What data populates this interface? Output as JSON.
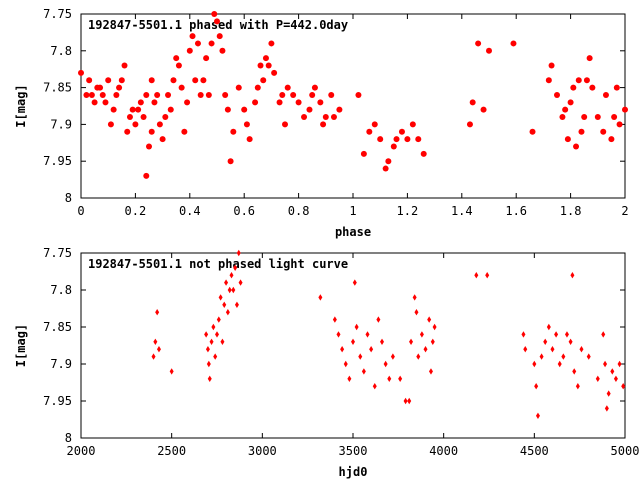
{
  "chart_data": [
    {
      "type": "scatter",
      "title": "192847-5501.1 phased with P=442.0day",
      "xlabel": "phase",
      "ylabel": "I[mag]",
      "xlim": [
        0,
        2
      ],
      "ylim": [
        7.75,
        8
      ],
      "y_inverted": true,
      "grid": false,
      "legend": "none",
      "color": "#ff0000",
      "marker": "filled-circle",
      "xticks": [
        "0",
        "0.2",
        "0.4",
        "0.6",
        "0.8",
        "1",
        "1.2",
        "1.4",
        "1.6",
        "1.8",
        "2"
      ],
      "yticks": [
        "7.75",
        "7.8",
        "7.85",
        "7.9",
        "7.95",
        "8"
      ],
      "series": [
        {
          "points": [
            [
              0.0,
              7.83
            ],
            [
              0.02,
              7.86
            ],
            [
              0.03,
              7.84
            ],
            [
              0.04,
              7.86
            ],
            [
              0.05,
              7.87
            ],
            [
              0.06,
              7.85
            ],
            [
              0.07,
              7.85
            ],
            [
              0.08,
              7.86
            ],
            [
              0.09,
              7.87
            ],
            [
              0.1,
              7.84
            ],
            [
              0.11,
              7.9
            ],
            [
              0.12,
              7.88
            ],
            [
              0.13,
              7.86
            ],
            [
              0.14,
              7.85
            ],
            [
              0.15,
              7.84
            ],
            [
              0.16,
              7.82
            ],
            [
              0.17,
              7.91
            ],
            [
              0.18,
              7.89
            ],
            [
              0.19,
              7.88
            ],
            [
              0.2,
              7.9
            ],
            [
              0.21,
              7.88
            ],
            [
              0.22,
              7.87
            ],
            [
              0.23,
              7.89
            ],
            [
              0.24,
              7.86
            ],
            [
              0.24,
              7.97
            ],
            [
              0.25,
              7.93
            ],
            [
              0.26,
              7.91
            ],
            [
              0.26,
              7.84
            ],
            [
              0.27,
              7.87
            ],
            [
              0.28,
              7.86
            ],
            [
              0.29,
              7.9
            ],
            [
              0.3,
              7.92
            ],
            [
              0.31,
              7.89
            ],
            [
              0.32,
              7.86
            ],
            [
              0.33,
              7.88
            ],
            [
              0.34,
              7.84
            ],
            [
              0.35,
              7.81
            ],
            [
              0.36,
              7.82
            ],
            [
              0.37,
              7.85
            ],
            [
              0.38,
              7.91
            ],
            [
              0.39,
              7.87
            ],
            [
              0.4,
              7.8
            ],
            [
              0.41,
              7.78
            ],
            [
              0.42,
              7.84
            ],
            [
              0.43,
              7.79
            ],
            [
              0.44,
              7.86
            ],
            [
              0.45,
              7.84
            ],
            [
              0.46,
              7.81
            ],
            [
              0.47,
              7.86
            ],
            [
              0.48,
              7.79
            ],
            [
              0.49,
              7.75
            ],
            [
              0.5,
              7.76
            ],
            [
              0.51,
              7.78
            ],
            [
              0.52,
              7.8
            ],
            [
              0.53,
              7.86
            ],
            [
              0.54,
              7.88
            ],
            [
              0.55,
              7.95
            ],
            [
              0.56,
              7.91
            ],
            [
              0.58,
              7.85
            ],
            [
              0.6,
              7.88
            ],
            [
              0.61,
              7.9
            ],
            [
              0.62,
              7.92
            ],
            [
              0.64,
              7.87
            ],
            [
              0.65,
              7.85
            ],
            [
              0.66,
              7.82
            ],
            [
              0.67,
              7.84
            ],
            [
              0.68,
              7.81
            ],
            [
              0.69,
              7.82
            ],
            [
              0.7,
              7.79
            ],
            [
              0.71,
              7.83
            ],
            [
              0.73,
              7.87
            ],
            [
              0.74,
              7.86
            ],
            [
              0.75,
              7.9
            ],
            [
              0.76,
              7.85
            ],
            [
              0.78,
              7.86
            ],
            [
              0.8,
              7.87
            ],
            [
              0.82,
              7.89
            ],
            [
              0.84,
              7.88
            ],
            [
              0.85,
              7.86
            ],
            [
              0.86,
              7.85
            ],
            [
              0.88,
              7.87
            ],
            [
              0.89,
              7.9
            ],
            [
              0.9,
              7.89
            ],
            [
              0.92,
              7.86
            ],
            [
              0.93,
              7.89
            ],
            [
              0.95,
              7.88
            ],
            [
              1.02,
              7.86
            ],
            [
              1.04,
              7.94
            ],
            [
              1.06,
              7.91
            ],
            [
              1.08,
              7.9
            ],
            [
              1.1,
              7.92
            ],
            [
              1.12,
              7.96
            ],
            [
              1.13,
              7.95
            ],
            [
              1.15,
              7.93
            ],
            [
              1.16,
              7.92
            ],
            [
              1.18,
              7.91
            ],
            [
              1.2,
              7.92
            ],
            [
              1.22,
              7.9
            ],
            [
              1.24,
              7.92
            ],
            [
              1.26,
              7.94
            ],
            [
              1.43,
              7.9
            ],
            [
              1.44,
              7.87
            ],
            [
              1.46,
              7.79
            ],
            [
              1.48,
              7.88
            ],
            [
              1.5,
              7.8
            ],
            [
              1.59,
              7.79
            ],
            [
              1.66,
              7.91
            ],
            [
              1.72,
              7.84
            ],
            [
              1.73,
              7.82
            ],
            [
              1.75,
              7.86
            ],
            [
              1.77,
              7.89
            ],
            [
              1.78,
              7.88
            ],
            [
              1.79,
              7.92
            ],
            [
              1.8,
              7.87
            ],
            [
              1.81,
              7.85
            ],
            [
              1.82,
              7.93
            ],
            [
              1.83,
              7.84
            ],
            [
              1.84,
              7.91
            ],
            [
              1.85,
              7.89
            ],
            [
              1.86,
              7.84
            ],
            [
              1.87,
              7.81
            ],
            [
              1.88,
              7.85
            ],
            [
              1.9,
              7.89
            ],
            [
              1.92,
              7.91
            ],
            [
              1.93,
              7.86
            ],
            [
              1.95,
              7.92
            ],
            [
              1.96,
              7.89
            ],
            [
              1.97,
              7.85
            ],
            [
              1.98,
              7.9
            ],
            [
              2.0,
              7.88
            ]
          ]
        }
      ]
    },
    {
      "type": "scatter",
      "title": "192847-5501.1 not phased light curve",
      "xlabel": "hjd0",
      "ylabel": "I[mag]",
      "xlim": [
        2000,
        5000
      ],
      "ylim": [
        7.75,
        8
      ],
      "y_inverted": true,
      "grid": false,
      "legend": "none",
      "color": "#ff0000",
      "marker": "filled-diamond",
      "xticks": [
        "2000",
        "2500",
        "3000",
        "3500",
        "4000",
        "4500",
        "5000"
      ],
      "yticks": [
        "7.75",
        "7.8",
        "7.85",
        "7.9",
        "7.95",
        "8"
      ],
      "series": [
        {
          "points": [
            [
              2400,
              7.89
            ],
            [
              2410,
              7.87
            ],
            [
              2420,
              7.83
            ],
            [
              2430,
              7.88
            ],
            [
              2500,
              7.91
            ],
            [
              2690,
              7.86
            ],
            [
              2700,
              7.88
            ],
            [
              2705,
              7.9
            ],
            [
              2710,
              7.92
            ],
            [
              2720,
              7.87
            ],
            [
              2730,
              7.85
            ],
            [
              2740,
              7.89
            ],
            [
              2750,
              7.86
            ],
            [
              2760,
              7.84
            ],
            [
              2770,
              7.81
            ],
            [
              2780,
              7.87
            ],
            [
              2790,
              7.82
            ],
            [
              2800,
              7.79
            ],
            [
              2810,
              7.83
            ],
            [
              2820,
              7.8
            ],
            [
              2830,
              7.78
            ],
            [
              2840,
              7.8
            ],
            [
              2850,
              7.77
            ],
            [
              2860,
              7.82
            ],
            [
              2870,
              7.75
            ],
            [
              2880,
              7.79
            ],
            [
              3320,
              7.81
            ],
            [
              3400,
              7.84
            ],
            [
              3420,
              7.86
            ],
            [
              3440,
              7.88
            ],
            [
              3460,
              7.9
            ],
            [
              3480,
              7.92
            ],
            [
              3500,
              7.87
            ],
            [
              3510,
              7.79
            ],
            [
              3520,
              7.85
            ],
            [
              3540,
              7.89
            ],
            [
              3560,
              7.91
            ],
            [
              3580,
              7.86
            ],
            [
              3600,
              7.88
            ],
            [
              3620,
              7.93
            ],
            [
              3640,
              7.84
            ],
            [
              3660,
              7.87
            ],
            [
              3680,
              7.9
            ],
            [
              3700,
              7.92
            ],
            [
              3720,
              7.89
            ],
            [
              3760,
              7.92
            ],
            [
              3790,
              7.95
            ],
            [
              3810,
              7.95
            ],
            [
              3820,
              7.87
            ],
            [
              3840,
              7.81
            ],
            [
              3850,
              7.83
            ],
            [
              3860,
              7.89
            ],
            [
              3880,
              7.86
            ],
            [
              3900,
              7.88
            ],
            [
              3920,
              7.84
            ],
            [
              3930,
              7.91
            ],
            [
              3940,
              7.87
            ],
            [
              3950,
              7.85
            ],
            [
              4180,
              7.78
            ],
            [
              4240,
              7.78
            ],
            [
              4440,
              7.86
            ],
            [
              4450,
              7.88
            ],
            [
              4500,
              7.9
            ],
            [
              4510,
              7.93
            ],
            [
              4520,
              7.97
            ],
            [
              4540,
              7.89
            ],
            [
              4560,
              7.87
            ],
            [
              4580,
              7.85
            ],
            [
              4600,
              7.88
            ],
            [
              4620,
              7.86
            ],
            [
              4640,
              7.9
            ],
            [
              4660,
              7.89
            ],
            [
              4680,
              7.86
            ],
            [
              4700,
              7.87
            ],
            [
              4710,
              7.78
            ],
            [
              4720,
              7.91
            ],
            [
              4740,
              7.93
            ],
            [
              4760,
              7.88
            ],
            [
              4800,
              7.89
            ],
            [
              4850,
              7.92
            ],
            [
              4880,
              7.86
            ],
            [
              4890,
              7.9
            ],
            [
              4900,
              7.96
            ],
            [
              4910,
              7.94
            ],
            [
              4930,
              7.91
            ],
            [
              4950,
              7.92
            ],
            [
              4970,
              7.9
            ],
            [
              4990,
              7.93
            ]
          ]
        }
      ]
    }
  ]
}
